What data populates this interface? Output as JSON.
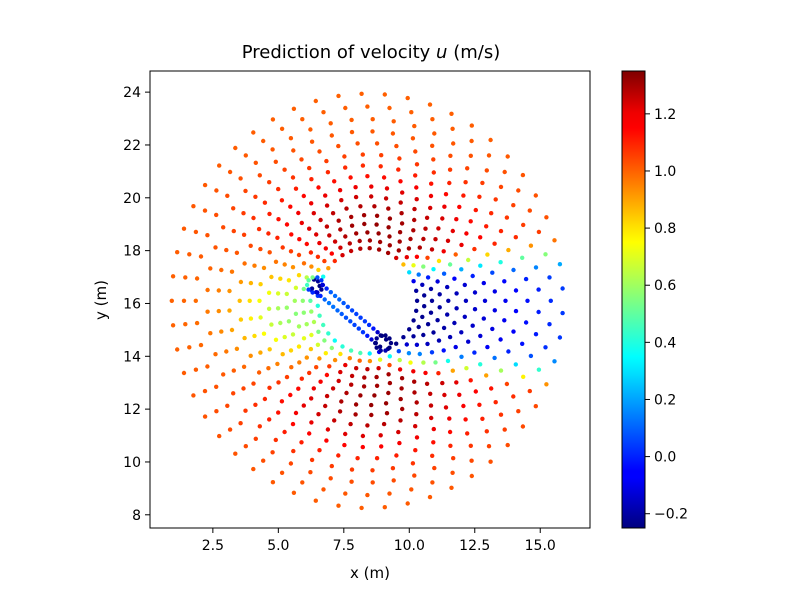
{
  "chart_data": {
    "type": "scatter",
    "title": "Prediction of velocity",
    "title_symbol": "u",
    "title_unit": "(m/s)",
    "xlabel": "x (m)",
    "ylabel": "y (m)",
    "xlim": [
      0.1,
      16.9
    ],
    "ylim": [
      7.5,
      24.8
    ],
    "xticks": [
      2.5,
      5.0,
      7.5,
      10.0,
      12.5,
      15.0
    ],
    "xtick_labels": [
      "2.5",
      "5.0",
      "7.5",
      "10.0",
      "12.5",
      "15.0"
    ],
    "yticks": [
      8,
      10,
      12,
      14,
      16,
      18,
      20,
      22,
      24
    ],
    "ytick_labels": [
      "8",
      "10",
      "12",
      "14",
      "16",
      "18",
      "20",
      "22",
      "24"
    ],
    "grid": false,
    "colormap": "jet",
    "colorbar": {
      "vmin": -0.25,
      "vmax": 1.35,
      "ticks": [
        -0.2,
        0.0,
        0.2,
        0.4,
        0.6,
        0.8,
        1.0,
        1.2
      ],
      "tick_labels": [
        "−0.2",
        "0.0",
        "0.2",
        "0.4",
        "0.6",
        "0.8",
        "1.0",
        "1.2"
      ]
    },
    "field": {
      "description": "Velocity u sampled on a polar point cloud around an inclined flat plate",
      "plate_start": [
        6.4,
        16.7
      ],
      "plate_end": [
        9.0,
        14.5
      ],
      "domain_center": [
        8.4,
        16.1
      ],
      "domain_radius": 7.5,
      "freestream_u": 1.0,
      "peak_u": 1.32,
      "min_u": -0.22
    }
  }
}
